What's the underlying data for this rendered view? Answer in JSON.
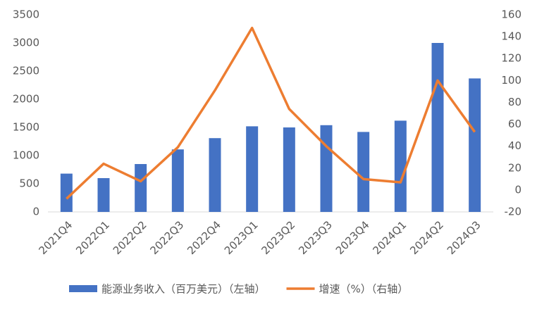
{
  "chart_data": {
    "type": "bar",
    "categories": [
      "2021Q4",
      "2022Q1",
      "2022Q2",
      "2022Q3",
      "2022Q4",
      "2023Q1",
      "2023Q2",
      "2023Q3",
      "2023Q4",
      "2024Q1",
      "2024Q2",
      "2024Q3"
    ],
    "series": [
      {
        "name": "能源业务收入（百万美元）（左轴）",
        "type": "bar",
        "color": "#4472c4",
        "values": [
          680,
          600,
          850,
          1110,
          1310,
          1520,
          1500,
          1540,
          1420,
          1620,
          3000,
          2370
        ]
      },
      {
        "name": "增速（%）（右轴）",
        "type": "line",
        "axis": "y2",
        "color": "#ed7d31",
        "values": [
          -8,
          24,
          8,
          39,
          91,
          148,
          74,
          40,
          10,
          7,
          100,
          53
        ]
      }
    ],
    "ylim": [
      0,
      3500
    ],
    "yticks": [
      0,
      500,
      1000,
      1500,
      2000,
      2500,
      3000,
      3500
    ],
    "y2lim": [
      -20,
      160
    ],
    "y2ticks": [
      -20,
      0,
      20,
      40,
      60,
      80,
      100,
      120,
      140,
      160
    ],
    "grid": false,
    "legend": "bottom"
  }
}
